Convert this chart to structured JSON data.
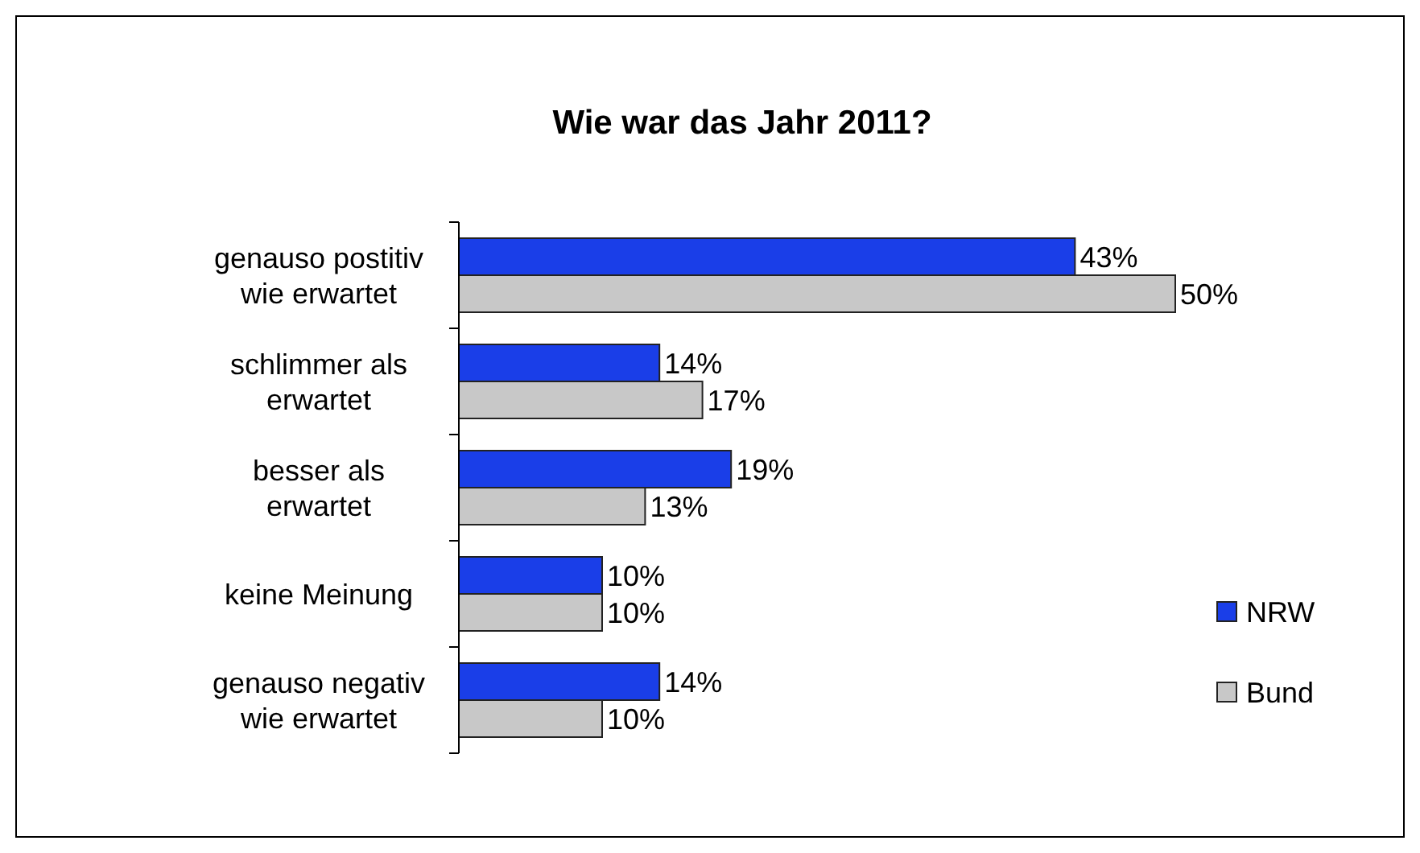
{
  "chart_data": {
    "type": "bar",
    "orientation": "horizontal",
    "title": "Wie war das Jahr 2011?",
    "categories": [
      "genauso postitiv wie erwartet",
      "schlimmer als erwartet",
      "besser als erwartet",
      "keine Meinung",
      "genauso negativ wie erwartet"
    ],
    "series": [
      {
        "name": "NRW",
        "color": "#1a3ee8",
        "values": [
          43,
          14,
          19,
          10,
          14
        ],
        "value_labels": [
          "43%",
          "14%",
          "19%",
          "10%",
          "14%"
        ]
      },
      {
        "name": "Bund",
        "color": "#c8c8c8",
        "values": [
          50,
          17,
          13,
          10,
          10
        ],
        "value_labels": [
          "50%",
          "17%",
          "13%",
          "10%",
          "10%"
        ]
      }
    ],
    "legend": "right"
  }
}
